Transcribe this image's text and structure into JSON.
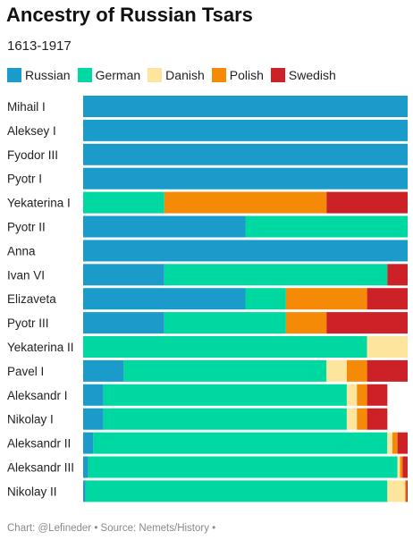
{
  "chart_data": {
    "type": "bar",
    "orientation": "horizontal",
    "stacked": true,
    "normalized_to": 1,
    "title": "Ancestry of Russian Tsars",
    "subtitle": "1613-1917",
    "legend_position": "top-left",
    "grid": false,
    "xlim": [
      0,
      1
    ],
    "categories": [
      "Mihail I",
      "Aleksey I",
      "Fyodor III",
      "Pyotr I",
      "Yekaterina I",
      "Pyotr II",
      "Anna",
      "Ivan VI",
      "Elizaveta",
      "Pyotr III",
      "Yekaterina II",
      "Pavel I",
      "Aleksandr I",
      "Nikolay I",
      "Aleksandr II",
      "Aleksandr III",
      "Nikolay II"
    ],
    "series": [
      {
        "name": "Russian",
        "color": "#1a9bc9",
        "values": [
          1,
          1,
          1,
          1,
          0,
          0.5,
          1,
          0.25,
          0.5,
          0.25,
          0,
          0.125,
          0.0625,
          0.0625,
          0.03125,
          0.015625,
          0.0078125
        ]
      },
      {
        "name": "German",
        "color": "#00d8a2",
        "values": [
          0,
          0,
          0,
          0,
          0.25,
          0.5,
          0,
          0.6875,
          0.125,
          0.375,
          0.875,
          0.625,
          0.75,
          0.75,
          0.90625,
          0.953125,
          0.9296875
        ]
      },
      {
        "name": "Danish",
        "color": "#fee59e",
        "values": [
          0,
          0,
          0,
          0,
          0,
          0,
          0,
          0,
          0,
          0,
          0.125,
          0.0625,
          0.03125,
          0.03125,
          0.015625,
          0.0078125,
          0.0546875
        ]
      },
      {
        "name": "Polish",
        "color": "#f58a07",
        "values": [
          0,
          0,
          0,
          0,
          0.5,
          0,
          0,
          0,
          0.25,
          0.125,
          0,
          0.0625,
          0.03125,
          0.03125,
          0.015625,
          0.0078125,
          0.00390625
        ]
      },
      {
        "name": "Swedish",
        "color": "#cc2127",
        "values": [
          0,
          0,
          0,
          0,
          0.25,
          0,
          0,
          0.0625,
          0.125,
          0.25,
          0,
          0.125,
          0.0625,
          0.0625,
          0.03125,
          0.015625,
          0.00390625
        ]
      }
    ]
  },
  "footer": {
    "credit": "Chart: @Lefineder • Source: Nemets/History •"
  }
}
